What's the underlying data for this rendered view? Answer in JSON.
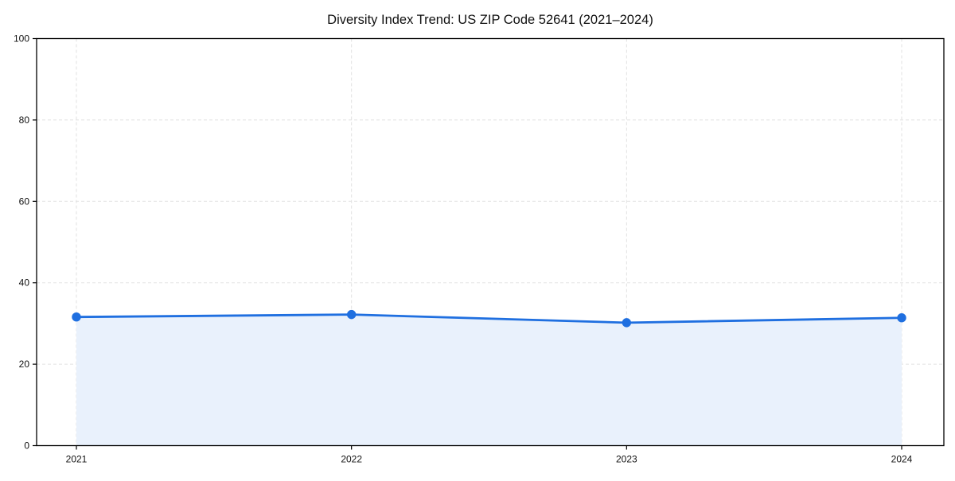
{
  "chart_data": {
    "type": "line",
    "title": "Diversity Index Trend: US ZIP Code 52641 (2021–2024)",
    "x": [
      "2021",
      "2022",
      "2023",
      "2024"
    ],
    "series": [
      {
        "name": "Diversity Index",
        "values": [
          31.6,
          32.2,
          30.2,
          31.4
        ]
      }
    ],
    "xlabel": "",
    "ylabel": "",
    "ylim": [
      0,
      100
    ],
    "yticks": [
      0,
      20,
      40,
      60,
      80,
      100
    ],
    "grid": true,
    "grid_style": "dashed",
    "legend": false,
    "area_fill": true,
    "marker": "circle",
    "colors": {
      "line": "#1f6fe0",
      "marker": "#1f6fe0",
      "area": "#e9f1fc",
      "grid": "#e2e2e2",
      "axis": "#000000",
      "text": "#111111",
      "background": "#ffffff"
    }
  }
}
